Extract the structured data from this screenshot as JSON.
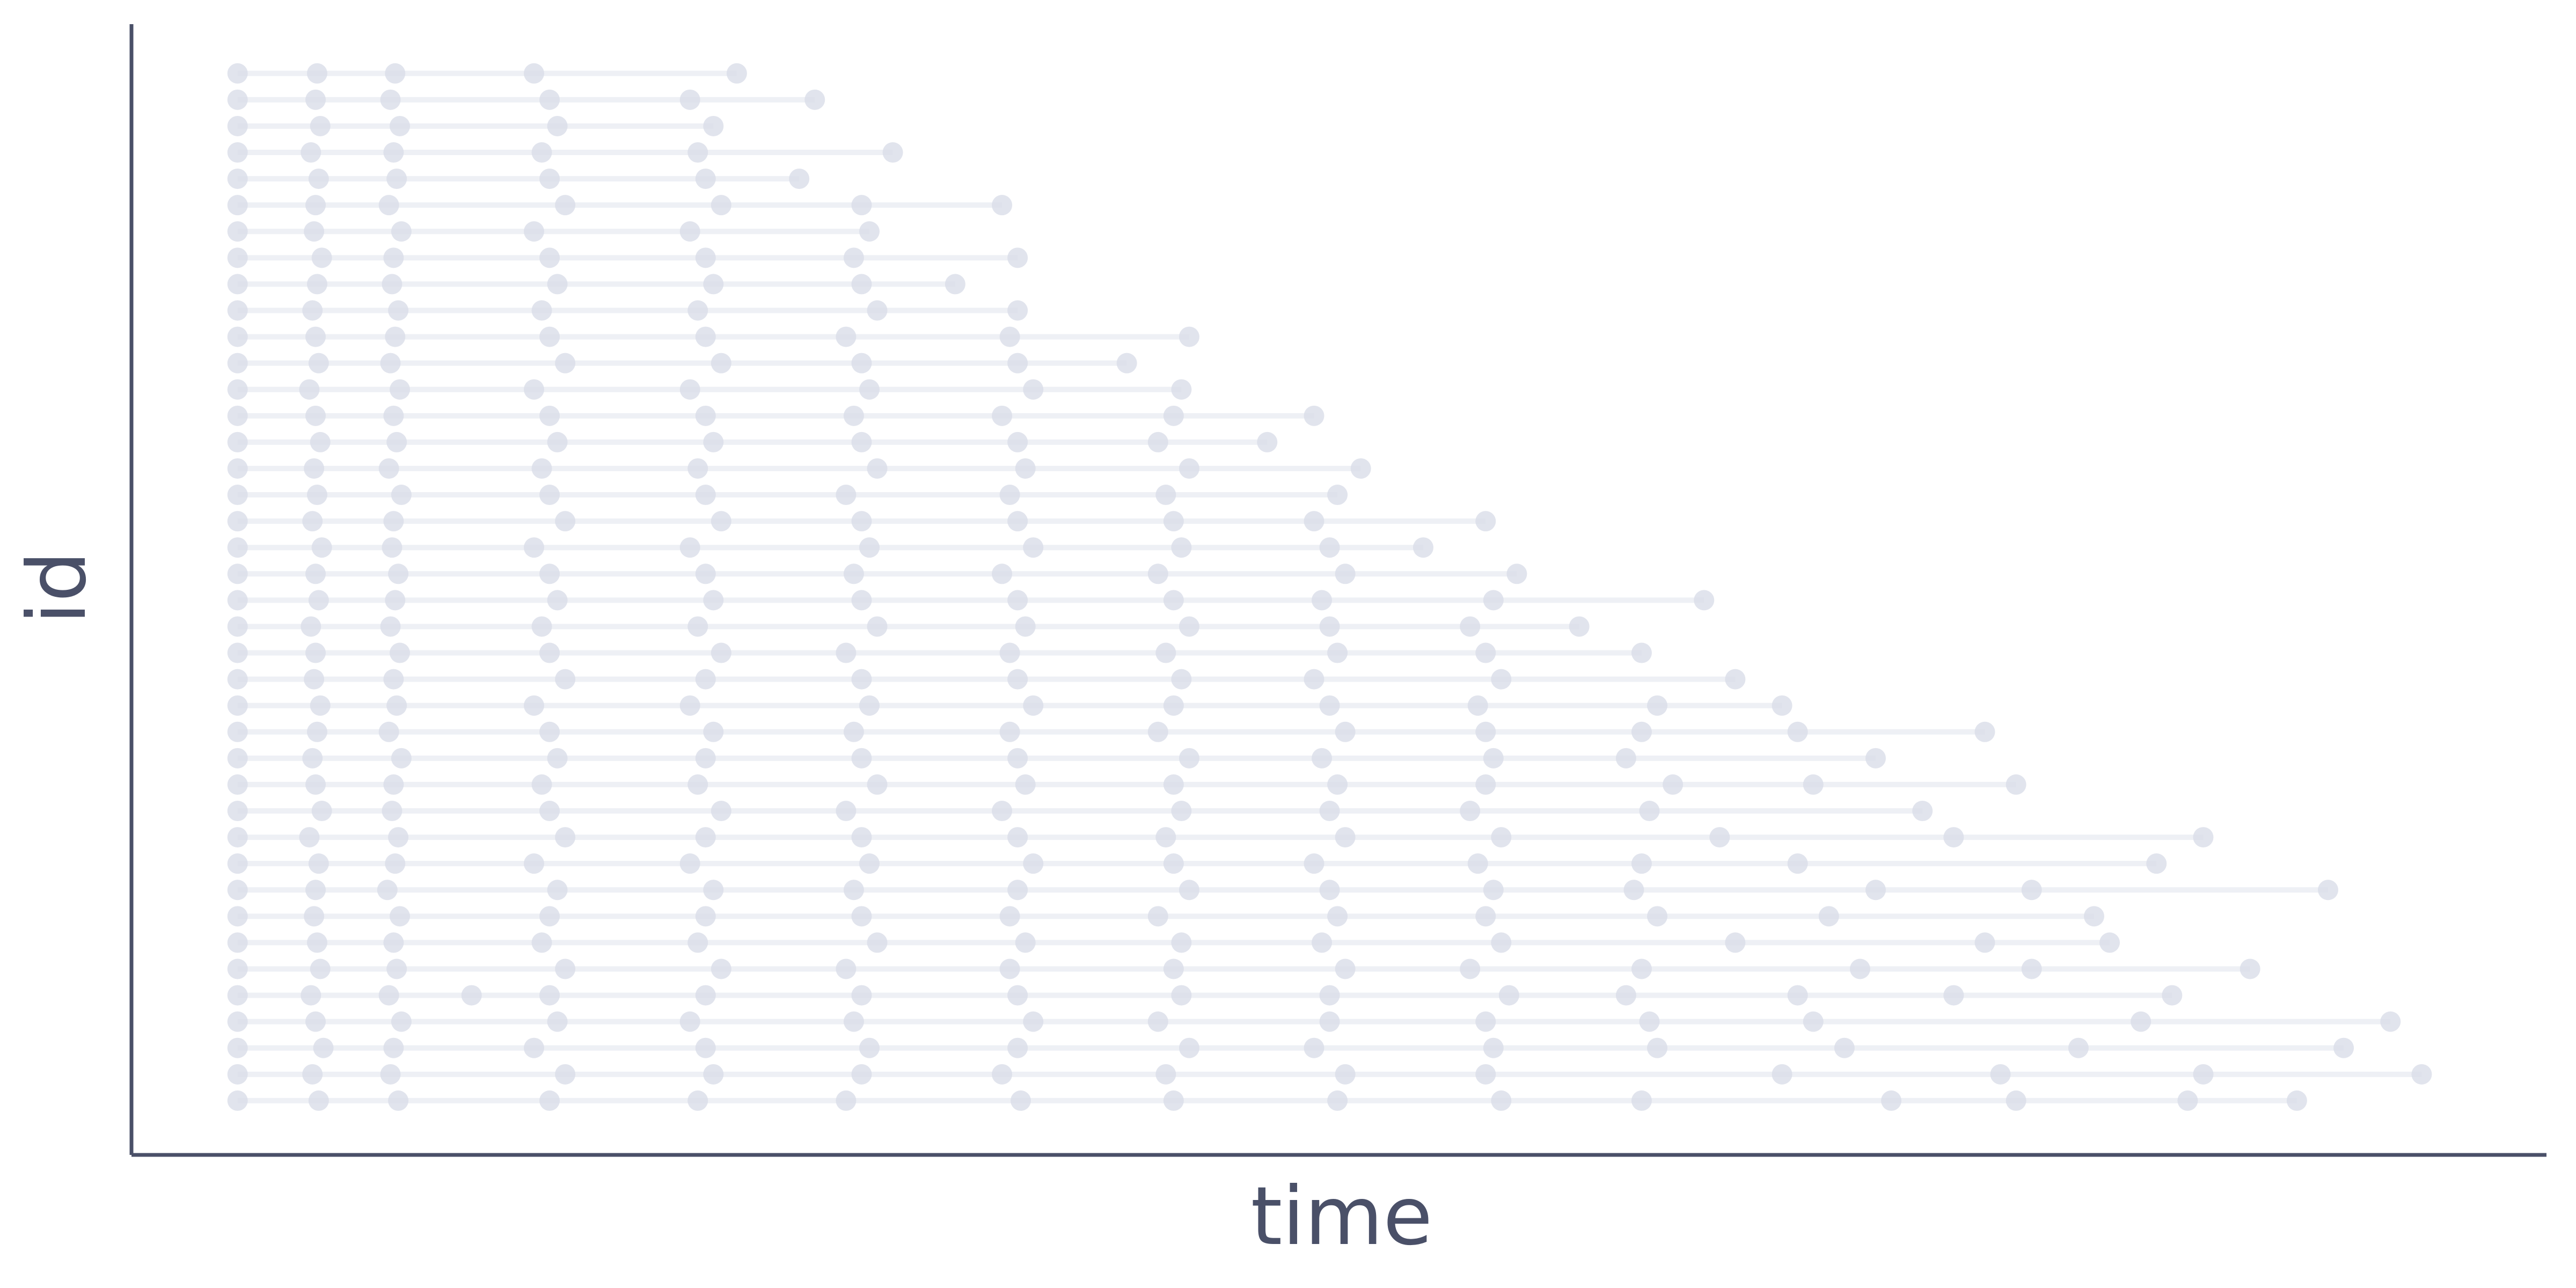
{
  "chart_data": {
    "type": "scatter",
    "xlabel": "time",
    "ylabel": "id",
    "color": "#d9dde9",
    "line_color": "#eef0f5",
    "axis_color": "#4a5068",
    "xlim": [
      -0.68,
      14.8
    ],
    "ylim": [
      -1.06,
      41.87
    ],
    "ids": [
      1,
      2,
      3,
      4,
      5,
      6,
      7,
      8,
      9,
      10,
      11,
      12,
      13,
      14,
      15,
      16,
      17,
      18,
      19,
      20,
      21,
      22,
      23,
      24,
      25,
      26,
      27,
      28,
      29,
      30,
      31,
      32,
      33,
      34,
      35,
      36,
      37,
      38,
      39,
      40
    ],
    "times": [
      [
        0,
        0.52,
        1.03,
        2.0,
        2.95,
        3.9,
        5.02,
        6.0,
        7.05,
        8.1,
        9.0,
        10.6,
        11.4,
        12.5,
        13.2
      ],
      [
        0,
        0.48,
        0.98,
        2.1,
        3.05,
        4.0,
        4.9,
        5.95,
        7.1,
        8.0,
        9.9,
        11.3,
        12.6,
        14.0
      ],
      [
        0,
        0.55,
        1.0,
        1.9,
        3.0,
        4.05,
        5.0,
        6.1,
        6.9,
        8.05,
        9.1,
        10.3,
        11.8,
        13.5
      ],
      [
        0,
        0.5,
        1.05,
        2.05,
        2.9,
        3.95,
        5.1,
        5.9,
        7.0,
        8.0,
        9.05,
        10.1,
        12.2,
        13.8
      ],
      [
        0,
        0.47,
        0.97,
        1.5,
        2.0,
        3.0,
        4.0,
        5.0,
        6.05,
        7.0,
        8.15,
        8.9,
        10.0,
        11.0,
        12.4
      ],
      [
        0,
        0.53,
        1.02,
        2.1,
        3.1,
        3.9,
        4.95,
        6.0,
        7.1,
        7.9,
        9.0,
        10.4,
        11.5,
        12.9
      ],
      [
        0,
        0.51,
        1.0,
        1.95,
        2.95,
        4.1,
        5.05,
        6.05,
        6.95,
        8.1,
        9.6,
        11.2,
        12.0
      ],
      [
        0,
        0.49,
        1.04,
        2.0,
        3.0,
        4.0,
        4.95,
        5.9,
        7.05,
        8.0,
        9.1,
        10.2,
        11.9
      ],
      [
        0,
        0.5,
        0.96,
        2.05,
        3.05,
        3.95,
        5.0,
        6.1,
        7.0,
        8.05,
        8.95,
        10.5,
        11.5,
        13.4
      ],
      [
        0,
        0.52,
        1.01,
        1.9,
        2.9,
        4.05,
        5.1,
        6.0,
        6.9,
        7.95,
        9.0,
        10.0,
        12.3
      ],
      [
        0,
        0.46,
        1.03,
        2.1,
        3.0,
        4.0,
        5.0,
        5.95,
        7.1,
        8.1,
        9.5,
        11.0,
        12.6
      ],
      [
        0,
        0.54,
        0.99,
        2.0,
        3.1,
        3.9,
        4.9,
        6.05,
        7.0,
        7.9,
        9.05,
        10.8
      ],
      [
        0,
        0.5,
        1.0,
        1.95,
        2.95,
        4.1,
        5.05,
        6.0,
        7.05,
        8.0,
        9.2,
        10.1,
        11.4
      ],
      [
        0,
        0.48,
        1.05,
        2.05,
        3.0,
        4.0,
        5.0,
        6.1,
        6.95,
        8.05,
        8.9,
        10.5
      ],
      [
        0,
        0.51,
        0.97,
        2.0,
        3.05,
        3.95,
        4.95,
        5.9,
        7.1,
        8.0,
        9.0,
        10.0,
        11.2
      ],
      [
        0,
        0.53,
        1.02,
        1.9,
        2.9,
        4.05,
        5.1,
        6.0,
        7.0,
        7.95,
        9.1,
        9.9
      ],
      [
        0,
        0.49,
        1.0,
        2.1,
        3.0,
        4.0,
        5.0,
        6.05,
        6.9,
        8.1,
        9.6
      ],
      [
        0,
        0.5,
        1.04,
        2.0,
        3.1,
        3.9,
        4.95,
        5.95,
        7.05,
        8.0,
        9.0
      ],
      [
        0,
        0.47,
        0.98,
        1.95,
        2.95,
        4.1,
        5.05,
        6.1,
        7.0,
        7.9,
        8.6
      ],
      [
        0,
        0.52,
        1.01,
        2.05,
        3.05,
        4.0,
        5.0,
        6.0,
        6.95,
        8.05,
        9.4
      ],
      [
        0,
        0.5,
        1.03,
        2.0,
        3.0,
        3.95,
        4.9,
        5.9,
        7.1,
        8.2
      ],
      [
        0,
        0.54,
        0.99,
        1.9,
        2.9,
        4.05,
        5.1,
        6.05,
        7.0,
        7.6
      ],
      [
        0,
        0.48,
        1.0,
        2.1,
        3.1,
        4.0,
        5.0,
        6.0,
        6.9,
        8.0
      ],
      [
        0,
        0.51,
        1.05,
        2.0,
        3.0,
        3.9,
        4.95,
        5.95,
        7.05
      ],
      [
        0,
        0.49,
        0.97,
        1.95,
        2.95,
        4.1,
        5.05,
        6.1,
        7.2
      ],
      [
        0,
        0.53,
        1.02,
        2.05,
        3.05,
        4.0,
        5.0,
        5.9,
        6.6
      ],
      [
        0,
        0.5,
        1.0,
        2.0,
        3.0,
        3.95,
        4.9,
        6.0,
        6.9
      ],
      [
        0,
        0.46,
        1.04,
        1.9,
        2.9,
        4.05,
        5.1,
        6.05
      ],
      [
        0,
        0.52,
        0.98,
        2.1,
        3.1,
        4.0,
        5.0,
        5.7
      ],
      [
        0,
        0.5,
        1.01,
        2.0,
        3.0,
        3.9,
        4.95,
        6.1
      ],
      [
        0,
        0.48,
        1.03,
        1.95,
        2.95,
        4.1,
        5.0
      ],
      [
        0,
        0.51,
        0.99,
        2.05,
        3.05,
        4.0,
        4.6
      ],
      [
        0,
        0.54,
        1.0,
        2.0,
        3.0,
        3.95,
        5.0
      ],
      [
        0,
        0.49,
        1.05,
        1.9,
        2.9,
        4.05
      ],
      [
        0,
        0.5,
        0.97,
        2.1,
        3.1,
        4.0,
        4.9
      ],
      [
        0,
        0.52,
        1.02,
        2.0,
        3.0,
        3.6
      ],
      [
        0,
        0.47,
        1.0,
        1.95,
        2.95,
        4.2
      ],
      [
        0,
        0.53,
        1.04,
        2.05,
        3.05
      ],
      [
        0,
        0.5,
        0.98,
        2.0,
        2.9,
        3.7
      ],
      [
        0,
        0.51,
        1.01,
        1.9,
        3.2
      ]
    ]
  }
}
